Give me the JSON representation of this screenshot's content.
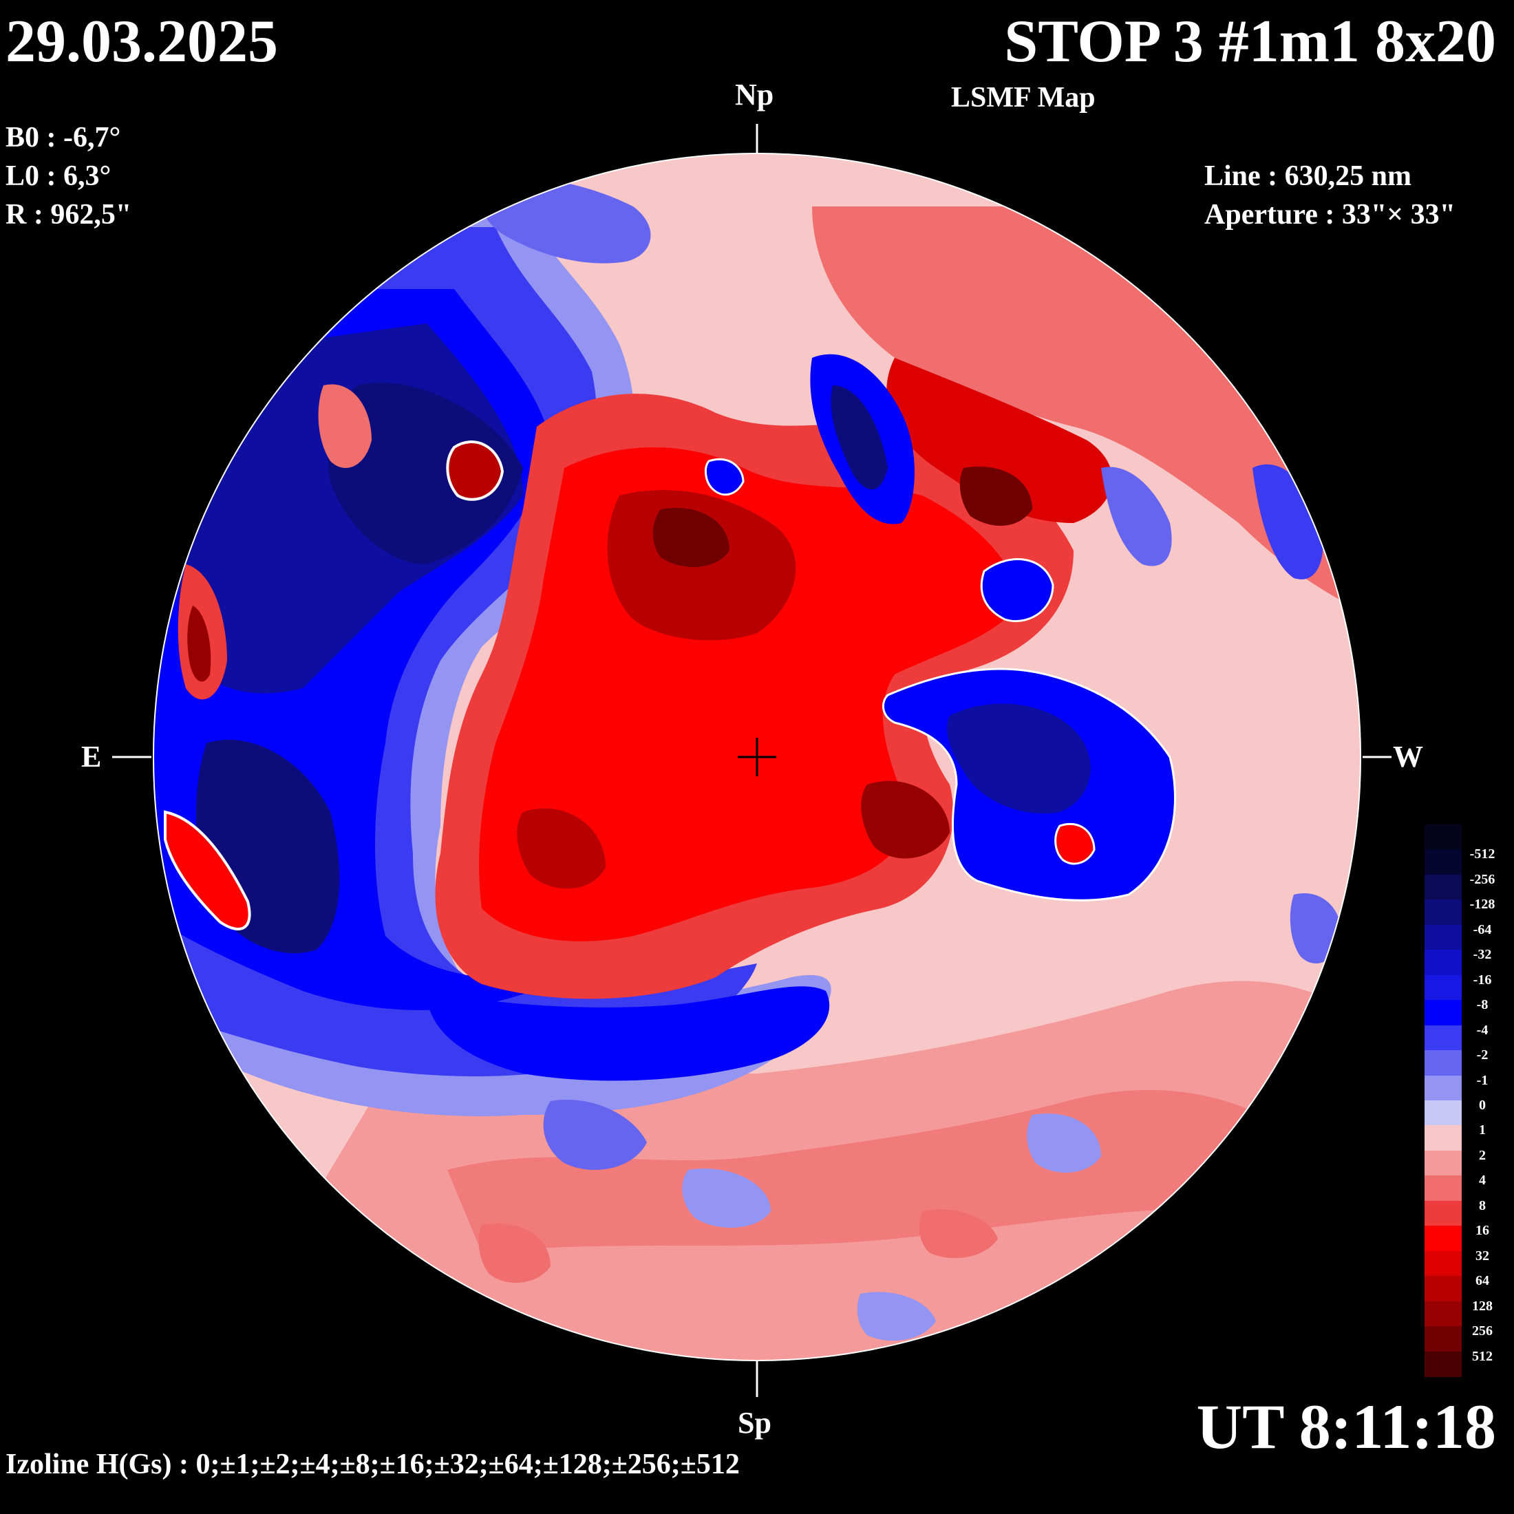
{
  "header": {
    "date": "29.03.2025",
    "title": "STOP 3 #1m1 8x20",
    "subtitle": "LSMF  Map"
  },
  "params": {
    "b0": "B0 : -6,7°",
    "l0": "L0 : 6,3°",
    "r": "R  : 962,5\"",
    "line": "Line :  630,25 nm",
    "aperture": "Aperture : 33\"× 33\""
  },
  "directions": {
    "north": "Np",
    "south": "Sp",
    "east": "E",
    "west": "W"
  },
  "footer": {
    "time": "UT 8:11:18",
    "izoline": "Izoline H(Gs) : 0;±1;±2;±4;±8;±16;±32;±64;±128;±256;±512"
  },
  "colorbar": {
    "labels": [
      "-512",
      "-256",
      "-128",
      "-64",
      "-32",
      "-16",
      "-8",
      "-4",
      "-2",
      "-1",
      "0",
      "1",
      "2",
      "4",
      "8",
      "16",
      "32",
      "64",
      "128",
      "256",
      "512"
    ],
    "colors": [
      "#050530",
      "#0a0a55",
      "#0c0c7a",
      "#0e0ea0",
      "#1010c8",
      "#1818e6",
      "#0000ff",
      "#3b3bf2",
      "#6565ef",
      "#9494f2",
      "#c8c8f6",
      "#f8c8c8",
      "#f59a9a",
      "#f06e6e",
      "#ee3b3b",
      "#ff0000",
      "#dc0000",
      "#b80000",
      "#960000",
      "#700000",
      "#4a0000"
    ]
  },
  "map": {
    "background_positive": "#f8c8c8",
    "isoline_zero": "#ffffff"
  }
}
